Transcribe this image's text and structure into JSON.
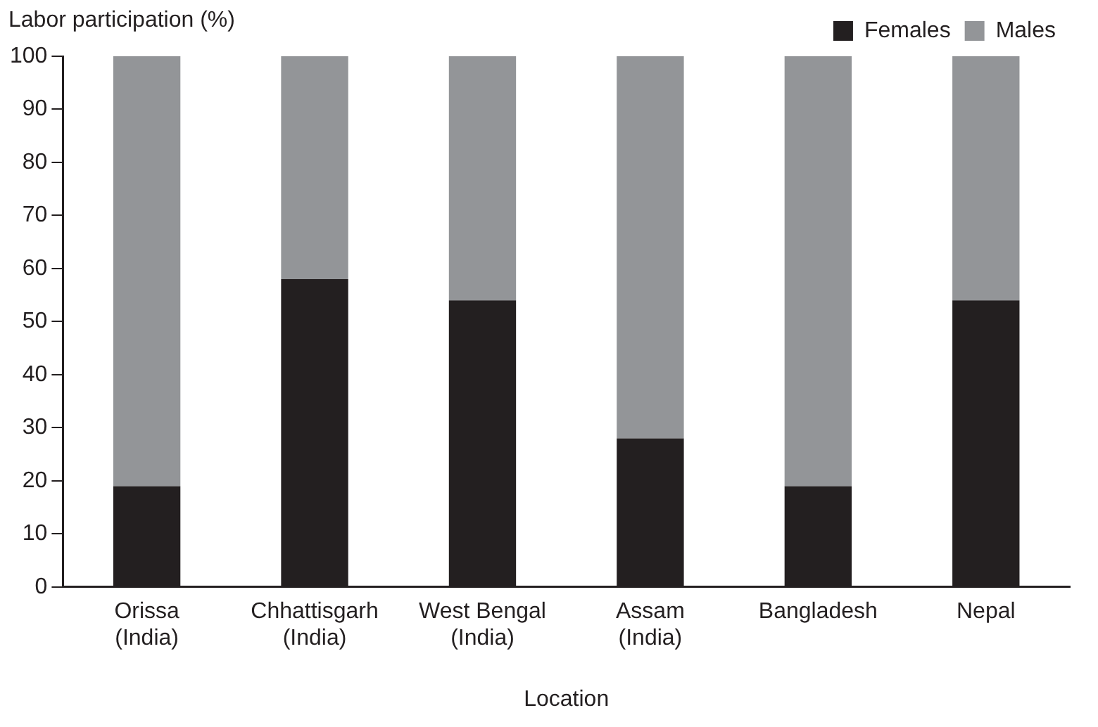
{
  "chart_data": {
    "type": "bar",
    "ylabel": "Labor participation (%)",
    "xlabel": "Location",
    "categories": [
      "Orissa\n(India)",
      "Chhattisgarh\n(India)",
      "West Bengal\n(India)",
      "Assam\n(India)",
      "Bangladesh",
      "Nepal"
    ],
    "series": [
      {
        "name": "Females",
        "color": "#231f20",
        "values": [
          19,
          58,
          54,
          28,
          19,
          54
        ]
      },
      {
        "name": "Males",
        "color": "#939598",
        "values": [
          81,
          42,
          46,
          72,
          81,
          46
        ]
      }
    ],
    "stacked": true,
    "ylim": [
      0,
      100
    ],
    "yticks": [
      0,
      10,
      20,
      30,
      40,
      50,
      60,
      70,
      80,
      90,
      100
    ],
    "grid": false,
    "legend": "top right"
  }
}
